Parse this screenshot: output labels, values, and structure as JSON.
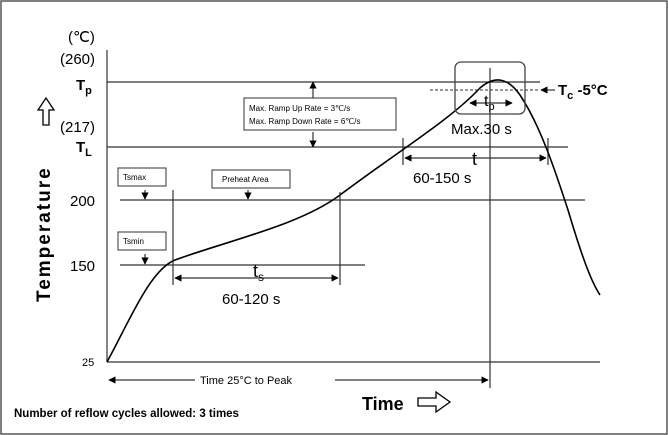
{
  "diagram": {
    "y_axis": {
      "unit": "(℃)",
      "label": "Temperature",
      "tick_260": "(260)",
      "tick_217": "(217)",
      "tick_200": "200",
      "tick_150": "150",
      "tick_25": "25",
      "tp": {
        "main": "T",
        "sub": "p"
      },
      "tl": {
        "main": "T",
        "sub": "L"
      }
    },
    "x_axis": {
      "label": "Time"
    },
    "ramp_box": {
      "up": "Max. Ramp Up Rate = 3℃/s",
      "down": "Max. Ramp Down Rate = 6℃/s"
    },
    "tsmax": "Tsmax",
    "tsmin": "Tsmin",
    "preheat": "Preheat Area",
    "ts": {
      "main": "t",
      "sub": "s",
      "range": "60-120 s"
    },
    "tp_time": {
      "main": "t",
      "sub": "p",
      "range": "Max.30 s"
    },
    "t_time": {
      "main": "t",
      "range": "60-150 s"
    },
    "tc": {
      "main": "T",
      "sub": "c",
      "rest": " -5°C"
    },
    "time_to_peak": "Time 25°C to Peak",
    "note": "Number of reflow cycles allowed: 3 times"
  }
}
